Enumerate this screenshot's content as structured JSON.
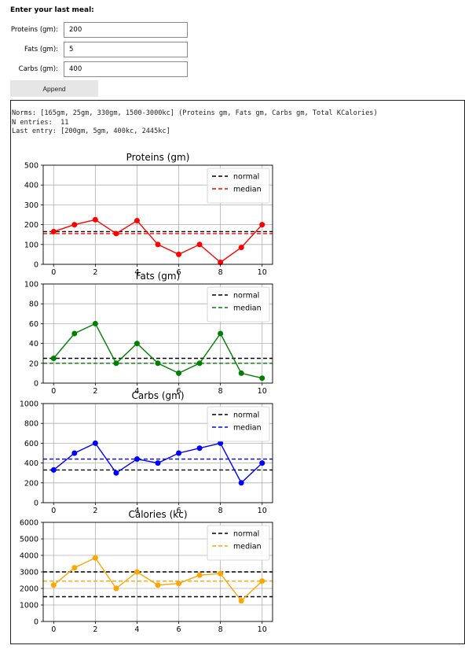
{
  "form": {
    "title": "Enter your last meal:",
    "proteins_label": "Proteins (gm):",
    "proteins_value": "200",
    "fats_label": "Fats (gm):",
    "fats_value": "5",
    "carbs_label": "Carbs (gm):",
    "carbs_value": "400",
    "append_label": "Append"
  },
  "output": {
    "norms_line": "Norms: [165gm, 25gm, 330gm, 1500-3000kc] (Proteins gm, Fats gm, Carbs gm, Total KCalories)",
    "entries_line": "N entries:  11",
    "last_entry_line": "Last entry: [200gm, 5gm, 400kc, 2445kc]"
  },
  "chart_data": [
    {
      "type": "line",
      "title": "Proteins (gm)",
      "x": [
        0,
        1,
        2,
        3,
        4,
        5,
        6,
        7,
        8,
        9,
        10
      ],
      "series": [
        {
          "name": "",
          "values": [
            165,
            200,
            225,
            155,
            220,
            100,
            50,
            100,
            10,
            85,
            200
          ],
          "color": "#ff0000"
        }
      ],
      "hlines": [
        {
          "name": "normal",
          "value": 165,
          "color": "#000000"
        },
        {
          "name": "median",
          "value": 155,
          "color": "#ff0000"
        }
      ],
      "ylim": [
        0,
        500
      ],
      "yticks": [
        0,
        100,
        200,
        300,
        400,
        500
      ],
      "xlim": [
        -0.5,
        10.5
      ],
      "xticks": [
        0,
        2,
        4,
        6,
        8,
        10
      ],
      "grid": true,
      "legend": "top-right"
    },
    {
      "type": "line",
      "title": "Fats (gm)",
      "x": [
        0,
        1,
        2,
        3,
        4,
        5,
        6,
        7,
        8,
        9,
        10
      ],
      "series": [
        {
          "name": "",
          "values": [
            25,
            50,
            60,
            20,
            40,
            20,
            10,
            20,
            50,
            10,
            5
          ],
          "color": "#008000"
        }
      ],
      "hlines": [
        {
          "name": "normal",
          "value": 25,
          "color": "#000000"
        },
        {
          "name": "median",
          "value": 20,
          "color": "#008000"
        }
      ],
      "ylim": [
        0,
        100
      ],
      "yticks": [
        0,
        20,
        40,
        60,
        80,
        100
      ],
      "xlim": [
        -0.5,
        10.5
      ],
      "xticks": [
        0,
        2,
        4,
        6,
        8,
        10
      ],
      "grid": true,
      "legend": "top-right"
    },
    {
      "type": "line",
      "title": "Carbs (gm)",
      "x": [
        0,
        1,
        2,
        3,
        4,
        5,
        6,
        7,
        8,
        9,
        10
      ],
      "series": [
        {
          "name": "",
          "values": [
            330,
            500,
            600,
            300,
            440,
            400,
            500,
            550,
            600,
            200,
            400
          ],
          "color": "#0000ff"
        }
      ],
      "hlines": [
        {
          "name": "normal",
          "value": 330,
          "color": "#000000"
        },
        {
          "name": "median",
          "value": 440,
          "color": "#0000ff"
        }
      ],
      "ylim": [
        0,
        1000
      ],
      "yticks": [
        0,
        200,
        400,
        600,
        800,
        1000
      ],
      "xlim": [
        -0.5,
        10.5
      ],
      "xticks": [
        0,
        2,
        4,
        6,
        8,
        10
      ],
      "grid": true,
      "legend": "top-right"
    },
    {
      "type": "line",
      "title": "Calories (kc)",
      "x": [
        0,
        1,
        2,
        3,
        4,
        5,
        6,
        7,
        8,
        9,
        10
      ],
      "series": [
        {
          "name": "",
          "values": [
            2200,
            3250,
            3850,
            2000,
            3000,
            2200,
            2300,
            2800,
            2900,
            1250,
            2445
          ],
          "color": "#ffa500"
        }
      ],
      "hlines": [
        {
          "name": "normal",
          "value": 3000,
          "color": "#000000"
        },
        {
          "name": "normal",
          "value": 1500,
          "color": "#000000"
        },
        {
          "name": "median",
          "value": 2445,
          "color": "#ffa500"
        }
      ],
      "ylim": [
        0,
        6000
      ],
      "yticks": [
        0,
        1000,
        2000,
        3000,
        4000,
        5000,
        6000
      ],
      "xlim": [
        -0.5,
        10.5
      ],
      "xticks": [
        0,
        2,
        4,
        6,
        8,
        10
      ],
      "grid": true,
      "legend": "top-right"
    }
  ]
}
